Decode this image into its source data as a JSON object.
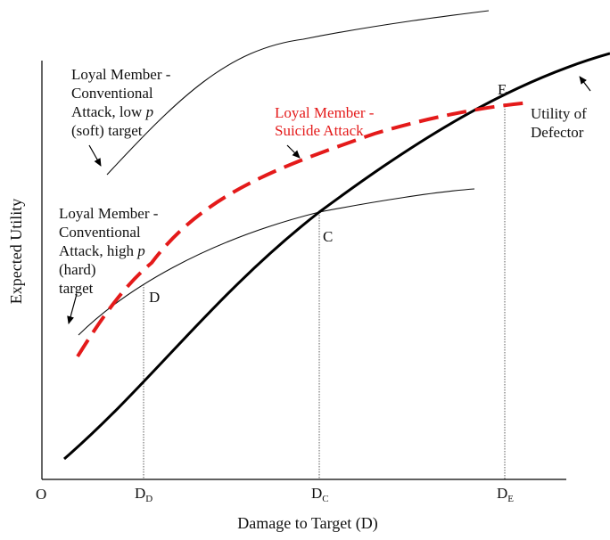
{
  "axes": {
    "origin_label": "O",
    "x_label": "Damage to Target (D)",
    "y_label": "Expected Utility",
    "ticks": {
      "d_d": {
        "main": "D",
        "sub": "D"
      },
      "d_c": {
        "main": "D",
        "sub": "C"
      },
      "d_e": {
        "main": "D",
        "sub": "E"
      }
    }
  },
  "curves": {
    "defector": {
      "label_lines": [
        "Utility of",
        "Defector"
      ],
      "color": "#000000"
    },
    "suicide": {
      "label_lines": [
        "Loyal Member -",
        "Suicide Attack"
      ],
      "color": "#e41a1a"
    },
    "conv_low": {
      "label_lines": [
        "Loyal Member -",
        "Conventional",
        "Attack, low ",
        "(soft) target"
      ],
      "p_symbol": "p"
    },
    "conv_high": {
      "label_lines": [
        "Loyal Member -",
        "Conventional",
        "Attack, high ",
        "(hard)",
        "target"
      ],
      "p_symbol": "p"
    }
  },
  "points": {
    "d": "D",
    "c": "C",
    "e": "E"
  }
}
